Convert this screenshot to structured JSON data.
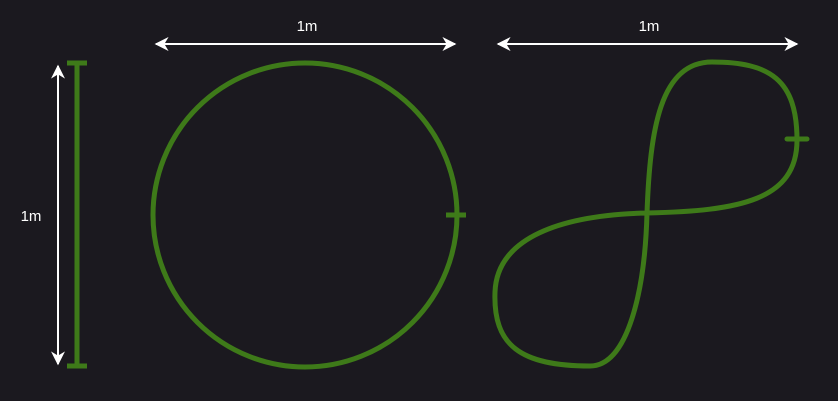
{
  "colors": {
    "background": "#1b191f",
    "path": "#3e7a19",
    "arrow": "#ffffff",
    "label": "#ffffff"
  },
  "dimensions": {
    "vertical_label": "1m",
    "circle_label": "1m",
    "figure_eight_label": "1m"
  },
  "shapes": {
    "line": "straight-line",
    "circle": "circle-loop",
    "figure_eight": "figure-eight-loop"
  }
}
